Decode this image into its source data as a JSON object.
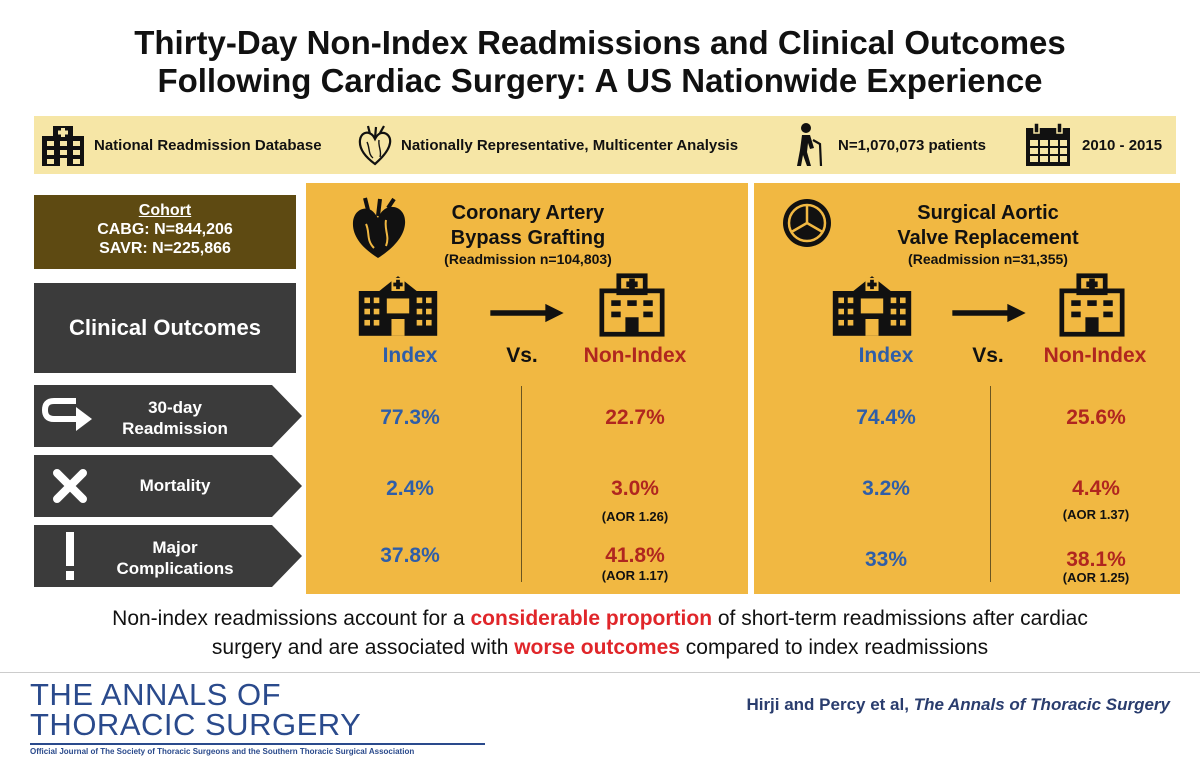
{
  "title": {
    "line1": "Thirty-Day Non-Index Readmissions and Clinical Outcomes",
    "line2": "Following Cardiac Surgery: A US Nationwide Experience"
  },
  "banner": {
    "items": [
      {
        "label": "National Readmission Database",
        "icon": "hospital-icon"
      },
      {
        "label": "Nationally Representative, Multicenter Analysis",
        "icon": "heart-anatomy-icon"
      },
      {
        "label": "N=1,070,073 patients",
        "icon": "elderly-person-icon"
      },
      {
        "label": "2010 - 2015",
        "icon": "calendar-icon"
      }
    ]
  },
  "cohort": {
    "heading": "Cohort",
    "cabg": "CABG: N=844,206",
    "savr": "SAVR: N=225,866"
  },
  "clinical_outcomes_label": "Clinical Outcomes",
  "rows": [
    {
      "label_line1": "30-day",
      "label_line2": "Readmission",
      "icon": "return-arrow-icon"
    },
    {
      "label_line1": "Mortality",
      "label_line2": "",
      "icon": "x-mark-icon"
    },
    {
      "label_line1": "Major",
      "label_line2": "Complications",
      "icon": "exclamation-icon"
    }
  ],
  "panels": [
    {
      "title_line1": "Coronary Artery",
      "title_line2": "Bypass Grafting",
      "subtitle": "(Readmission n=104,803)",
      "index_label": "Index",
      "vs_label": "Vs.",
      "nonindex_label": "Non-Index",
      "values": [
        {
          "index": "77.3%",
          "nonindex": "22.7%",
          "aor": ""
        },
        {
          "index": "2.4%",
          "nonindex": "3.0%",
          "aor": "(AOR 1.26)"
        },
        {
          "index": "37.8%",
          "nonindex": "41.8%",
          "aor": "(AOR 1.17)"
        }
      ]
    },
    {
      "title_line1": "Surgical Aortic",
      "title_line2": "Valve Replacement",
      "subtitle": "(Readmission n=31,355)",
      "index_label": "Index",
      "vs_label": "Vs.",
      "nonindex_label": "Non-Index",
      "values": [
        {
          "index": "74.4%",
          "nonindex": "25.6%",
          "aor": ""
        },
        {
          "index": "3.2%",
          "nonindex": "4.4%",
          "aor": "(AOR 1.37)"
        },
        {
          "index": "33%",
          "nonindex": "38.1%",
          "aor": "(AOR 1.25)"
        }
      ]
    }
  ],
  "conclusion": {
    "part1": "Non-index readmissions account for a ",
    "highlight1": "considerable proportion",
    "part2": " of short-term readmissions after cardiac",
    "part3": "surgery and are associated with ",
    "highlight2": "worse outcomes",
    "part4": " compared to index readmissions"
  },
  "journal": {
    "line1": "THE ANNALS OF",
    "line2": "THORACIC SURGERY",
    "tagline": "Official Journal of The Society of Thoracic Surgeons and the Southern Thoracic Surgical Association"
  },
  "citation": {
    "authors": "Hirji and Percy et al, ",
    "journal": "The Annals of Thoracic Surgery"
  },
  "colors": {
    "panel": "#f1b842",
    "banner": "#f6e6a6",
    "cohort": "#5e4a12",
    "dark": "#3b3b3b",
    "index_blue": "#2f5ea8",
    "nonindex_red": "#b0261f",
    "highlight_red": "#e0262a",
    "journal_blue": "#2a4a8c"
  }
}
